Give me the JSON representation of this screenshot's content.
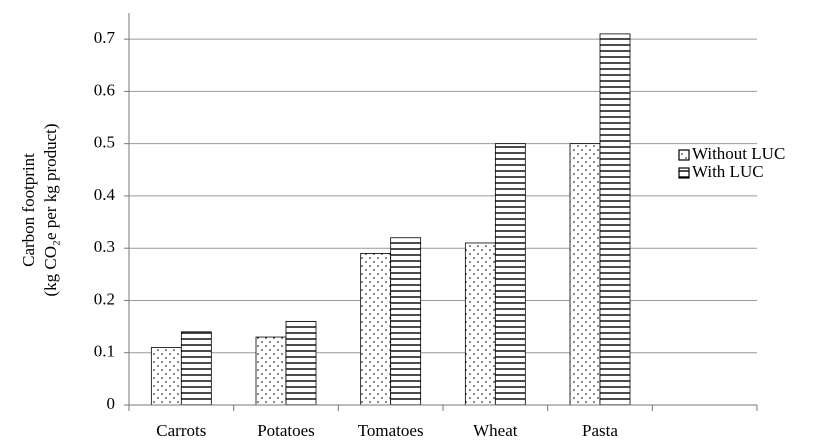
{
  "chart_data": {
    "type": "bar",
    "y_label": [
      "Carbon footprint",
      "(kg CO₂e per kg product)"
    ],
    "categories": [
      "Carrots",
      "Potatoes",
      "Tomatoes",
      "Wheat",
      "Pasta",
      null
    ],
    "series": [
      {
        "name": "Without LUC",
        "color": "#000000",
        "pattern": "dots",
        "values": [
          0.11,
          0.13,
          0.29,
          0.31,
          0.5,
          null
        ]
      },
      {
        "name": "With LUC",
        "color": "#000000",
        "pattern": "hlines",
        "values": [
          0.14,
          0.16,
          0.32,
          0.5,
          0.71,
          null
        ]
      }
    ],
    "ylim": [
      0,
      0.75
    ],
    "yticks": [
      0,
      0.1,
      0.2,
      0.3,
      0.4,
      0.5,
      0.6,
      0.7
    ],
    "grid": true,
    "legend": "right"
  }
}
